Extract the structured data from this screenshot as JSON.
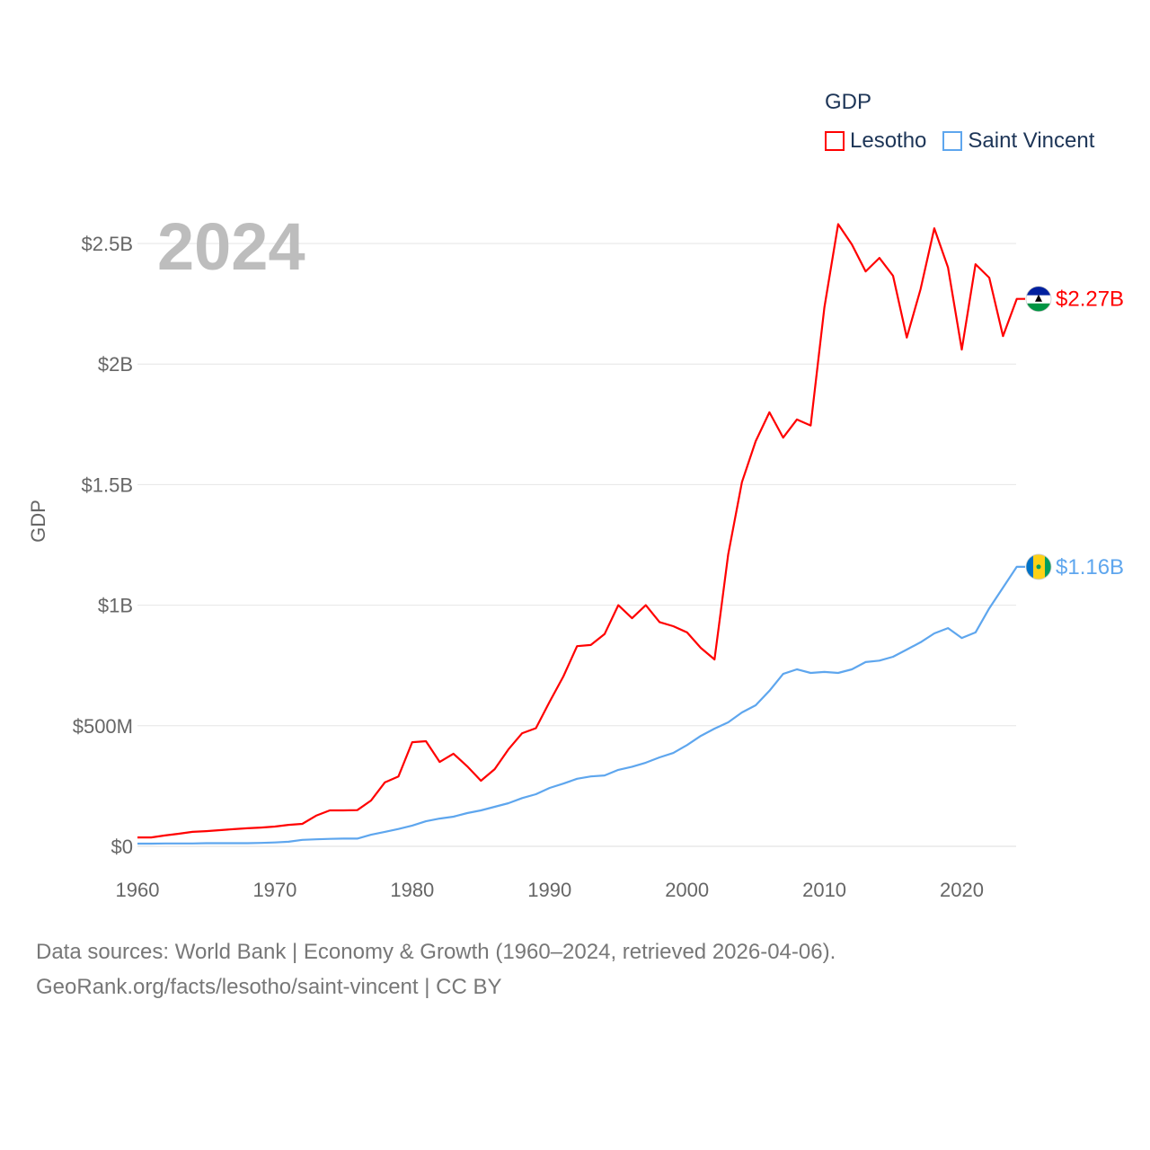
{
  "chart_data": {
    "type": "line",
    "title": "GDP",
    "year_label": "2024",
    "ylabel": "GDP",
    "xlabel": "",
    "ylim": [
      0,
      2.7
    ],
    "xlim": [
      1960,
      2024
    ],
    "y_ticks": [
      {
        "v": 0,
        "label": "$0"
      },
      {
        "v": 0.5,
        "label": "$500M"
      },
      {
        "v": 1,
        "label": "$1B"
      },
      {
        "v": 1.5,
        "label": "$1.5B"
      },
      {
        "v": 2,
        "label": "$2B"
      },
      {
        "v": 2.5,
        "label": "$2.5B"
      }
    ],
    "x_ticks": [
      {
        "v": 1960,
        "label": "1960"
      },
      {
        "v": 1970,
        "label": "1970"
      },
      {
        "v": 1980,
        "label": "1980"
      },
      {
        "v": 1990,
        "label": "1990"
      },
      {
        "v": 2000,
        "label": "2000"
      },
      {
        "v": 2010,
        "label": "2010"
      },
      {
        "v": 2020,
        "label": "2020"
      }
    ],
    "grid": true,
    "legend_placement": "top-right",
    "x": [
      1960,
      1961,
      1962,
      1963,
      1964,
      1965,
      1966,
      1967,
      1968,
      1969,
      1970,
      1971,
      1972,
      1973,
      1974,
      1975,
      1976,
      1977,
      1978,
      1979,
      1980,
      1981,
      1982,
      1983,
      1984,
      1985,
      1986,
      1987,
      1988,
      1989,
      1990,
      1991,
      1992,
      1993,
      1994,
      1995,
      1996,
      1997,
      1998,
      1999,
      2000,
      2001,
      2002,
      2003,
      2004,
      2005,
      2006,
      2007,
      2008,
      2009,
      2010,
      2011,
      2012,
      2013,
      2014,
      2015,
      2016,
      2017,
      2018,
      2019,
      2020,
      2021,
      2022,
      2023,
      2024
    ],
    "series": [
      {
        "name": "Lesotho",
        "color": "#ff0000",
        "end_label": "$2.27B",
        "flag": "lesotho-flag",
        "values": [
          0.037,
          0.037,
          0.045,
          0.052,
          0.06,
          0.063,
          0.067,
          0.071,
          0.075,
          0.078,
          0.082,
          0.089,
          0.093,
          0.127,
          0.149,
          0.149,
          0.15,
          0.19,
          0.265,
          0.29,
          0.432,
          0.436,
          0.35,
          0.384,
          0.332,
          0.272,
          0.32,
          0.402,
          0.469,
          0.49,
          0.6,
          0.704,
          0.83,
          0.835,
          0.88,
          1.0,
          0.946,
          1.0,
          0.93,
          0.913,
          0.887,
          0.823,
          0.775,
          1.21,
          1.51,
          1.68,
          1.8,
          1.695,
          1.77,
          1.745,
          2.235,
          2.58,
          2.496,
          2.384,
          2.44,
          2.366,
          2.11,
          2.31,
          2.563,
          2.4,
          2.06,
          2.414,
          2.358,
          2.116,
          2.27
        ]
      },
      {
        "name": "Saint Vincent",
        "color": "#5ea6ee",
        "end_label": "$1.16B",
        "flag": "saint-vincent-flag",
        "values": [
          0.011,
          0.011,
          0.012,
          0.012,
          0.012,
          0.013,
          0.013,
          0.013,
          0.013,
          0.014,
          0.016,
          0.019,
          0.027,
          0.029,
          0.031,
          0.032,
          0.032,
          0.048,
          0.06,
          0.072,
          0.086,
          0.104,
          0.115,
          0.123,
          0.138,
          0.149,
          0.164,
          0.179,
          0.2,
          0.216,
          0.242,
          0.26,
          0.28,
          0.29,
          0.294,
          0.317,
          0.33,
          0.347,
          0.369,
          0.387,
          0.42,
          0.458,
          0.488,
          0.514,
          0.555,
          0.585,
          0.645,
          0.715,
          0.734,
          0.719,
          0.723,
          0.719,
          0.734,
          0.764,
          0.77,
          0.786,
          0.816,
          0.846,
          0.883,
          0.905,
          0.864,
          0.887,
          0.987,
          1.073,
          1.159
        ]
      }
    ]
  },
  "footer": {
    "line1": "Data sources: World Bank | Economy & Growth (1960–2024, retrieved 2026-04-06).",
    "line2": "GeoRank.org/facts/lesotho/saint-vincent | CC BY"
  }
}
